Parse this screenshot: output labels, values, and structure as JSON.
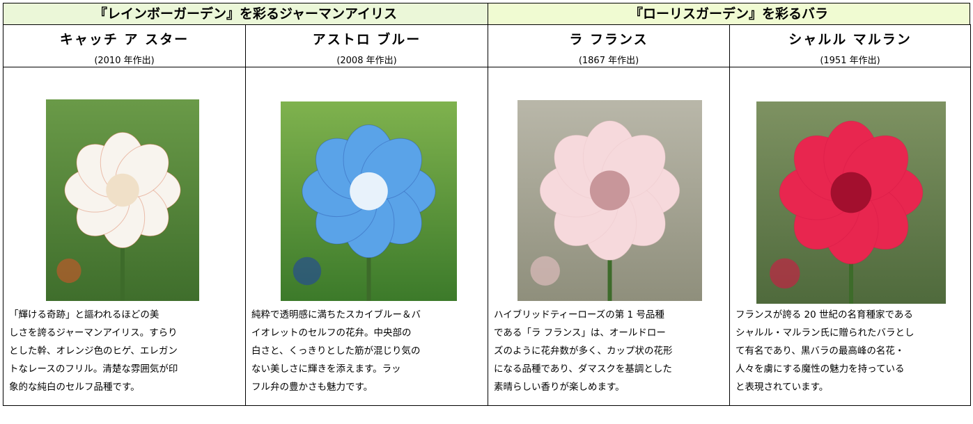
{
  "groups": [
    {
      "title": "『レインボーガーデン』を彩るジャーマンアイリス"
    },
    {
      "title": "『ローリスガーデン』を彩るバラ"
    }
  ],
  "varieties": [
    {
      "name": "キャッチ ア スター",
      "year": "(2010 年作出)",
      "description": [
        "「輝ける奇跡」と謳われるほどの美",
        "しさを誇るジャーマンアイリス。すらり",
        "とした幹、オレンジ色のヒゲ、エレガン",
        "トなレースのフリル。清楚な雰囲気が印",
        "象的な純白のセルフ品種です。"
      ]
    },
    {
      "name": "アストロ ブルー",
      "year": "(2008 年作出)",
      "description": [
        "純粋で透明感に満ちたスカイブルー＆バ",
        "イオレットのセルフの花弁。中央部の",
        "白さと、くっきりとした筋が混じり気の",
        "ない美しさに輝きを添えます。ラッ",
        "フル弁の豊かさも魅力です。"
      ]
    },
    {
      "name": "ラ フランス",
      "year": "(1867 年作出)",
      "description": [
        "ハイブリッドティーローズの第 1 号品種",
        "である「ラ フランス」は、オールドロー",
        "ズのように花弁数が多く、カップ状の花形",
        "になる品種であり、ダマスクを基調とした",
        "素晴らしい香りが楽しめます。"
      ]
    },
    {
      "name": "シャルル マルラン",
      "year": "(1951 年作出)",
      "description": [
        "フランスが誇る 20 世紀の名育種家である",
        "シャルル・マルラン氏に贈られたバラとし",
        "て有名であり、黒バラの最高峰の名花・",
        "人々を虜にする魔性の魅力を持っている",
        "と表現されています。"
      ]
    }
  ]
}
